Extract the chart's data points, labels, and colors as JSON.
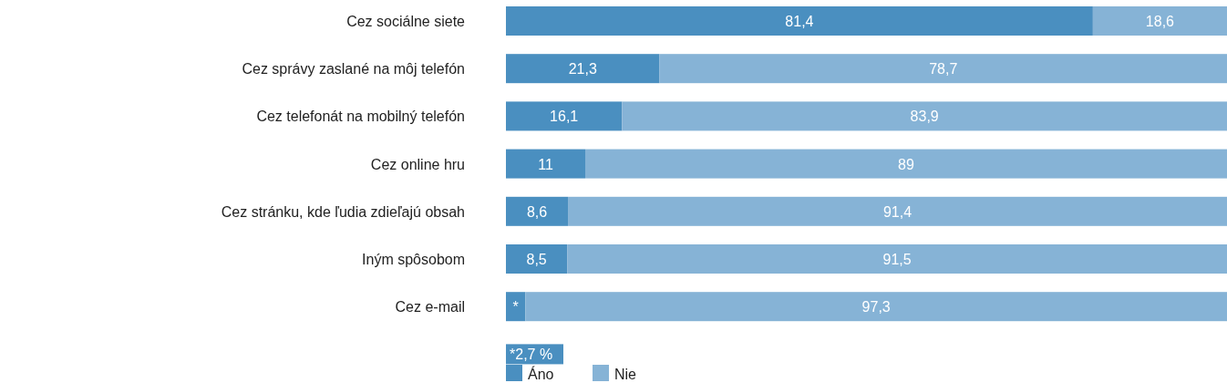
{
  "chart_data": {
    "type": "bar",
    "orientation": "horizontal",
    "stacked": true,
    "categories": [
      "Cez sociálne siete",
      "Cez správy zaslané na môj telefón",
      "Cez telefonát na mobilný telefón",
      "Cez online hru",
      "Cez stránku, kde ľudia zdieľajú obsah",
      "Iným spôsobom",
      "Cez e-mail"
    ],
    "xlim": [
      0,
      100
    ],
    "tick_labels": "y",
    "legend": "bottom left",
    "series": [
      {
        "name": "Áno",
        "color": "#4a8fc0",
        "values": [
          81.4,
          21.3,
          16.1,
          11,
          8.6,
          8.5,
          2.7
        ],
        "value_labels": [
          "81,4",
          "21,3",
          "16,1",
          "11",
          "8,6",
          "8,5",
          "*"
        ]
      },
      {
        "name": "Nie",
        "color": "#86b3d6",
        "values": [
          18.6,
          78.7,
          83.9,
          89,
          91.4,
          91.5,
          97.3
        ],
        "value_labels": [
          "18,6",
          "78,7",
          "83,9",
          "89",
          "91,4",
          "91,5",
          "97,3"
        ]
      }
    ],
    "annotations": [
      "*2,7 %"
    ]
  }
}
